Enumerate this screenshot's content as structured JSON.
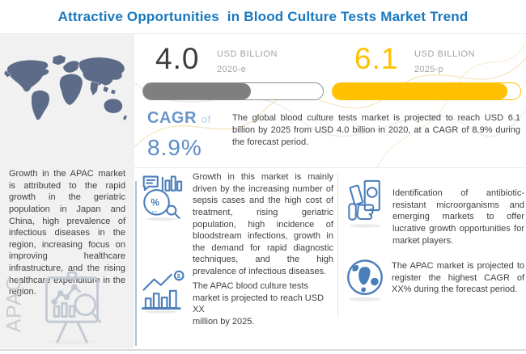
{
  "title": "Attractive Opportunities  in Blood Culture Tests Market Trend",
  "stats": {
    "current": {
      "value": "4.0",
      "unit": "USD BILLION",
      "period": "2020-e",
      "bar_percent": 60,
      "bar_color": "#7f7f7f"
    },
    "projected": {
      "value": "6.1",
      "unit": "USD BILLION",
      "period": "2025-p",
      "bar_percent": 93,
      "bar_color": "#ffc000"
    }
  },
  "cagr": {
    "label": "CAGR",
    "connector": "of",
    "value": "8.9%"
  },
  "summary": "The global blood culture tests market is projected to reach USD 6.1 billion by 2025 from USD 4.0 billion in 2020, at a CAGR of 8.9% during the forecast period.",
  "sidebar": {
    "region_label": "APAC",
    "description": "Growth in the APAC market is attributed to the rapid growth in the geriatric population in Japan and China, high prevalence of infectious diseases in the region, increasing focus on improving healthcare infrastructure, and the rising healthcare expenditure in the region."
  },
  "insights": {
    "drivers": "Growth in this market is mainly driven by the increasing number of sepsis cases and the high cost of treatment, rising geriatric population, high incidence of bloodstream infections, growth in the demand for rapid diagnostic techniques, and the high prevalence of infectious diseases.",
    "apac_market": "The APAC blood culture tests market is projected to reach USD XX\n million by 2025.",
    "opportunities": "Identification of antibiotic-resistant microorganisms and emerging markets to offer lucrative growth opportunities for market players.",
    "apac_cagr": "The APAC market is projected to register the highest CAGR of XX% during the forecast period."
  },
  "icons": {
    "map": "world-map",
    "sidebar_board": "market-analysis-board-icon",
    "drivers": "pie-percent-magnifier-icon",
    "apac_market": "growth-bar-chart-dollar-icon",
    "opportunities": "money-in-hand-icon",
    "apac_cagr": "globe-icon"
  },
  "colors": {
    "title_blue": "#1878be",
    "icon_blue": "#4a7ebb",
    "cagr_blue": "#5d8cc7",
    "yellow": "#ffc000",
    "grey_bar": "#7f7f7f",
    "sidebar_bg": "#f1f1f2",
    "map_fill": "#5c6b87"
  }
}
